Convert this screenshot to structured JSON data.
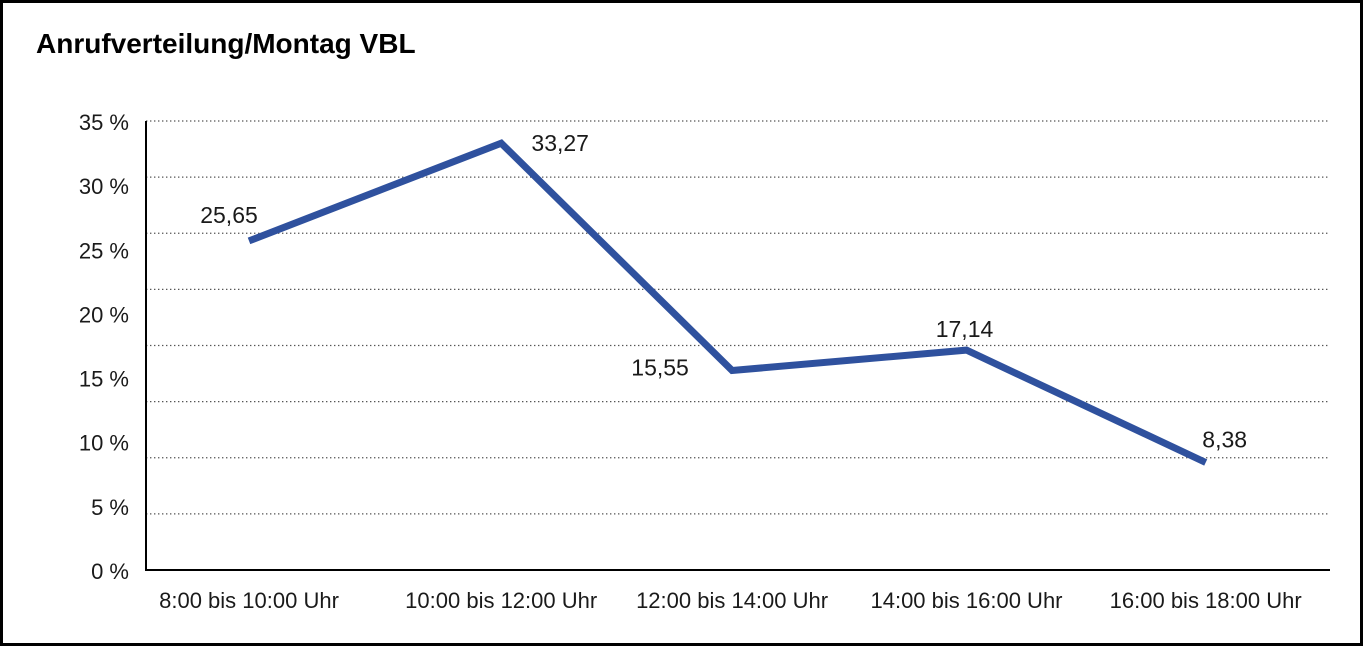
{
  "frame": {
    "background": "#ffffff",
    "border_color": "#000000"
  },
  "chart_data": {
    "type": "line",
    "title": "Anrufverteilung/Montag VBL",
    "categories": [
      "8:00 bis 10:00 Uhr",
      "10:00 bis 12:00 Uhr",
      "12:00 bis 14:00 Uhr",
      "14:00 bis 16:00 Uhr",
      "16:00 bis 18:00 Uhr"
    ],
    "values": [
      25.65,
      33.27,
      15.55,
      17.14,
      8.38
    ],
    "value_labels": [
      "25,65",
      "33,27",
      "15,55",
      "17,14",
      "8,38"
    ],
    "y_ticks": [
      {
        "value": 35,
        "label": "35 %"
      },
      {
        "value": 30,
        "label": "30 %"
      },
      {
        "value": 25,
        "label": "25 %"
      },
      {
        "value": 20,
        "label": "20 %"
      },
      {
        "value": 15,
        "label": "15 %"
      },
      {
        "value": 10,
        "label": "10 %"
      },
      {
        "value": 5,
        "label": "5 %"
      },
      {
        "value": 0,
        "label": "0 %"
      }
    ],
    "ylim": [
      0,
      35
    ],
    "xlabel": "",
    "ylabel": "",
    "legend": "none",
    "grid": {
      "style": "dotted",
      "horizontal_divisions": 8
    },
    "line_color": "#2f519e",
    "grid_color": "#555555",
    "axis_color": "#000000"
  }
}
